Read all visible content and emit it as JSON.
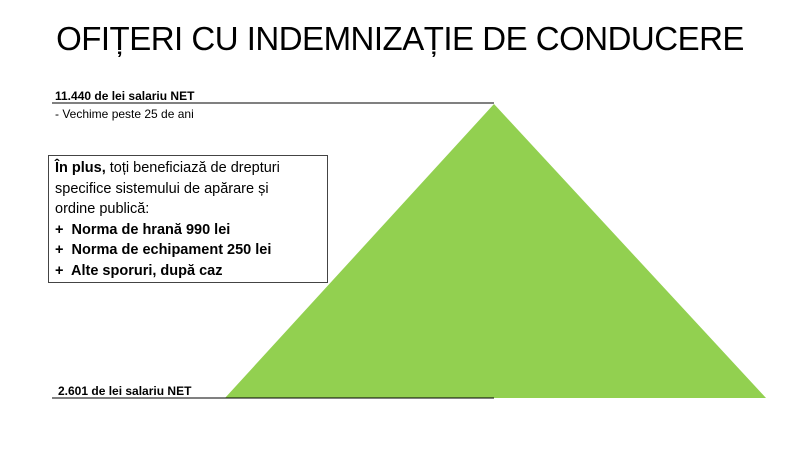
{
  "title": "OFIȚERI CU INDEMNIZAȚIE DE CONDUCERE",
  "top": {
    "label": "11.440 de lei salariu NET",
    "sub": "- Vechime peste 25 de ani"
  },
  "bottom": {
    "label": "2.601 de lei salariu  NET"
  },
  "box": {
    "intro_bold": "În plus,",
    "intro_line1": " toți beneficiază de drepturi",
    "intro_line2": "specifice sistemului de apărare și",
    "intro_line3": "ordine publică:",
    "items": [
      {
        "bullet": "+",
        "text": "Norma de hrană 990 lei"
      },
      {
        "bullet": "+",
        "text": "Norma de echipament 250 lei"
      },
      {
        "bullet": "+",
        "text": "Alte sporuri, după caz"
      }
    ]
  },
  "colors": {
    "pyramid": "#92d050",
    "line": "#000000"
  }
}
